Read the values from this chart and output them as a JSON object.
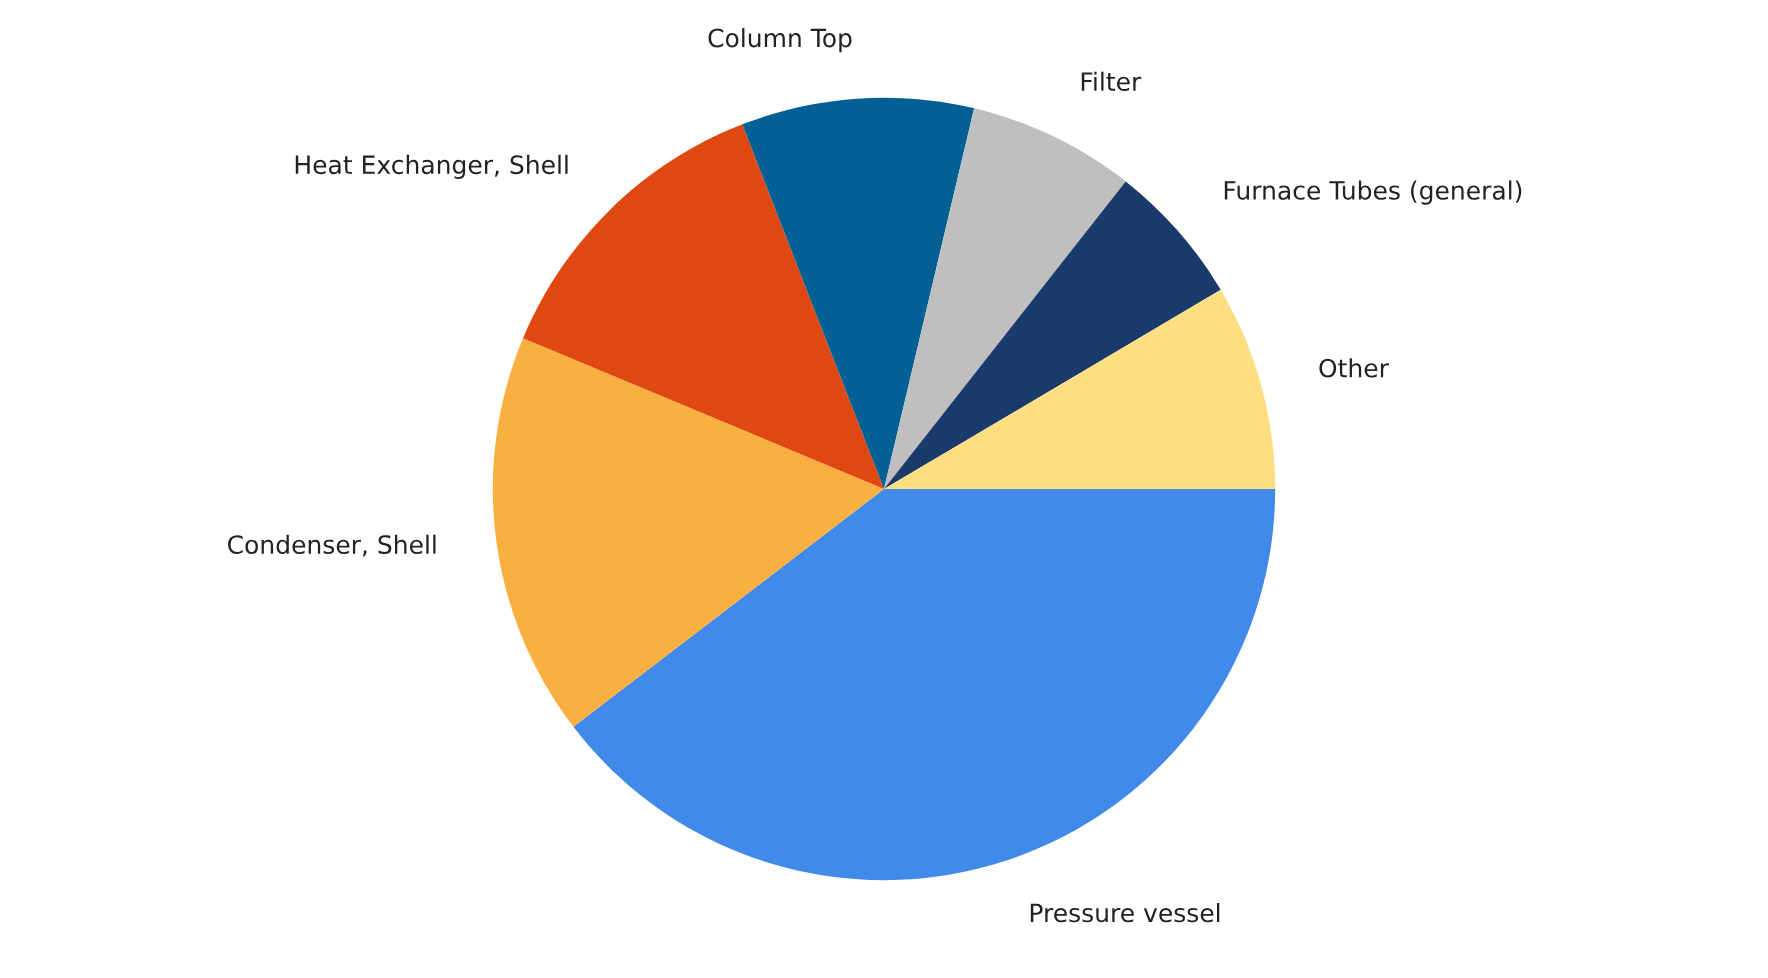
{
  "chart_data": {
    "type": "pie",
    "categories": [
      "Pressure vessel",
      "Condenser, Shell",
      "Heat Exchanger, Shell",
      "Column Top",
      "Filter",
      "Furnace Tubes (general)",
      "Other"
    ],
    "values": [
      39.6,
      16.7,
      12.8,
      9.6,
      6.9,
      5.9,
      8.5
    ],
    "colors": [
      "#418aea",
      "#f9b040",
      "#e04812",
      "#036094",
      "#bfbfbf",
      "#1b3a6c",
      "#fdde80"
    ]
  }
}
